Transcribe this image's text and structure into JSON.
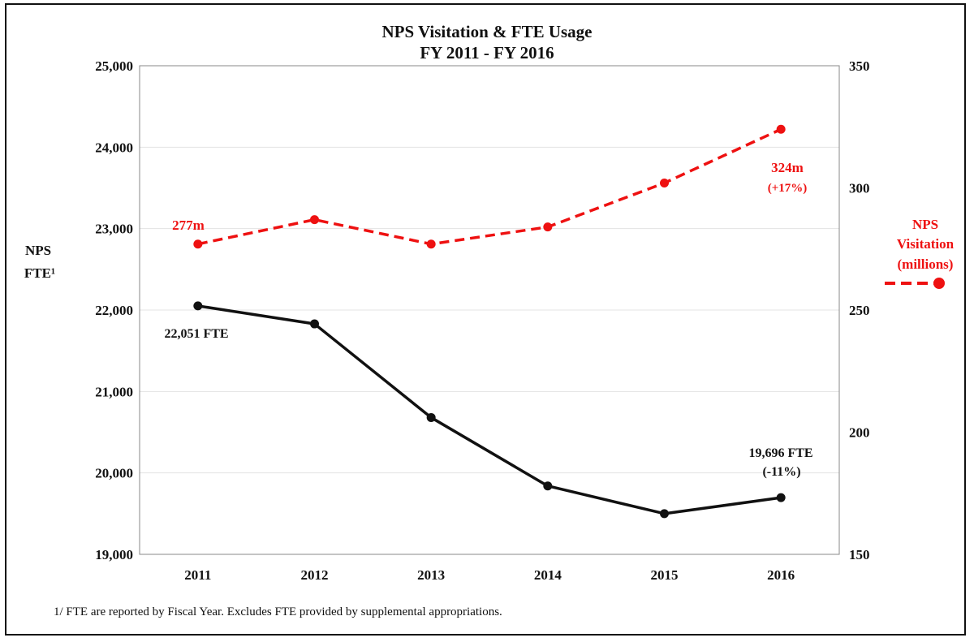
{
  "chart_data": {
    "type": "line",
    "title_lines": [
      "NPS Visitation & FTE Usage",
      "FY 2011 - FY 2016"
    ],
    "categories": [
      "2011",
      "2012",
      "2013",
      "2014",
      "2015",
      "2016"
    ],
    "left_axis": {
      "label_lines": [
        "NPS",
        "FTE¹"
      ],
      "ylim": [
        19000,
        25000
      ],
      "ticks": [
        19000,
        20000,
        21000,
        22000,
        23000,
        24000,
        25000
      ],
      "tick_labels": [
        "19,000",
        "20,000",
        "21,000",
        "22,000",
        "23,000",
        "24,000",
        "25,000"
      ]
    },
    "right_axis": {
      "ylim": [
        150,
        350
      ],
      "ticks": [
        150,
        200,
        250,
        300,
        350
      ],
      "tick_labels": [
        "150",
        "200",
        "250",
        "300",
        "350"
      ]
    },
    "series": [
      {
        "name": "NPS FTE",
        "axis": "left",
        "color": "#111111",
        "style": "solid",
        "values": [
          22051,
          21830,
          20680,
          19840,
          19500,
          19696
        ]
      },
      {
        "name": "NPS Visitation (millions)",
        "axis": "right",
        "color": "#ee1111",
        "style": "dashed",
        "values": [
          277,
          287,
          277,
          284,
          302,
          324
        ]
      }
    ],
    "legend": {
      "position": "right",
      "label_lines": [
        "NPS",
        "Visitation",
        "(millions)"
      ]
    },
    "annotations": {
      "vis_start": "277m",
      "vis_end_lines": [
        "324m",
        "(+17%)"
      ],
      "fte_start": "22,051 FTE",
      "fte_end_lines": [
        "19,696 FTE",
        "(-11%)"
      ]
    },
    "grid": true,
    "footnote": "1/ FTE are reported by Fiscal Year.  Excludes FTE provided by supplemental appropriations."
  }
}
